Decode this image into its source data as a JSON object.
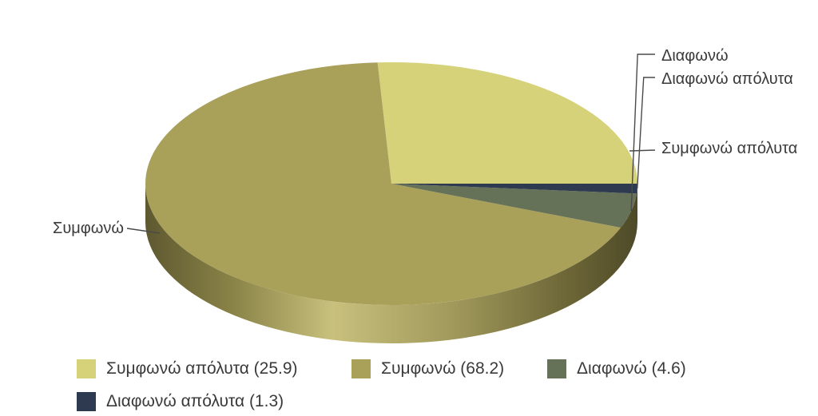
{
  "chart_data": {
    "type": "pie",
    "three_d": true,
    "start_angle_deg": 0,
    "direction": "counterclockwise",
    "slices": [
      {
        "label": "Συμφωνώ απόλυτα",
        "value": 25.9,
        "color": "#d6d27a",
        "legend": "Συμφωνώ απόλυτα (25.9)"
      },
      {
        "label": "Συμφωνώ",
        "value": 68.2,
        "color": "#a9a05a",
        "legend": "Συμφωνώ (68.2)"
      },
      {
        "label": "Διαφωνώ",
        "value": 4.6,
        "color": "#667258",
        "legend": "Διαφωνώ (4.6)"
      },
      {
        "label": "Διαφωνώ απόλυτα",
        "value": 1.3,
        "color": "#2e3a4f",
        "legend": "Διαφωνώ απόλυτα (1.3)"
      }
    ],
    "legend_position": "bottom"
  }
}
